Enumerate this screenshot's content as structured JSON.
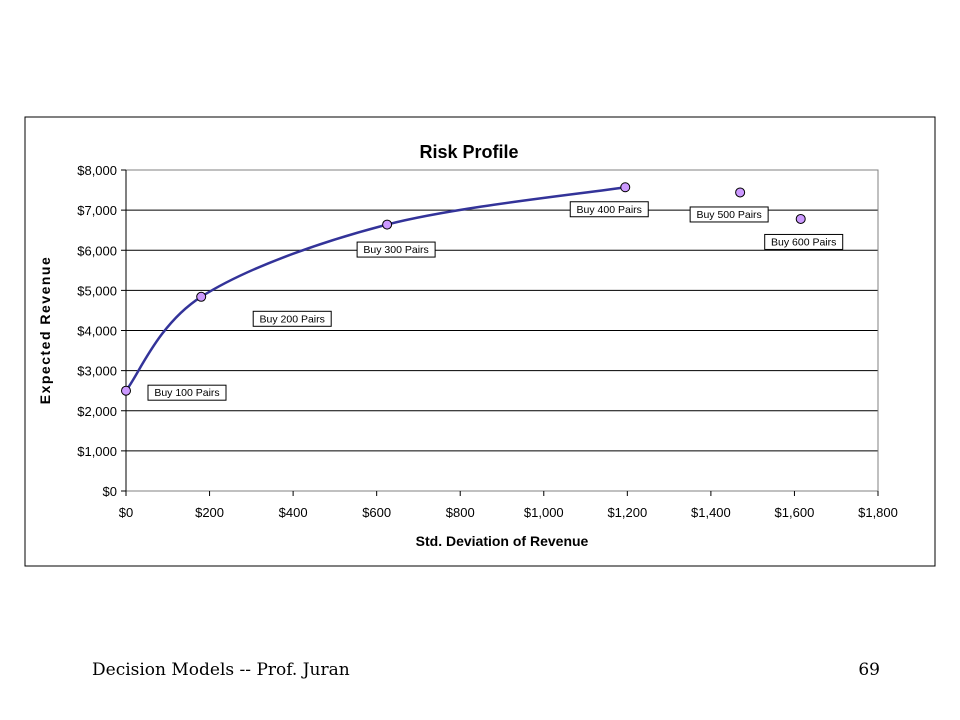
{
  "chart_data": {
    "type": "scatter",
    "title": "Risk Profile",
    "xlabel": "Std. Deviation of Revenue",
    "ylabel": "Expected Revenue",
    "xlim": [
      0,
      1800
    ],
    "ylim": [
      0,
      8000
    ],
    "x_ticks": [
      "$0",
      "$200",
      "$400",
      "$600",
      "$800",
      "$1,000",
      "$1,200",
      "$1,400",
      "$1,600",
      "$1,800"
    ],
    "y_ticks": [
      "$0",
      "$1,000",
      "$2,000",
      "$3,000",
      "$4,000",
      "$5,000",
      "$6,000",
      "$7,000",
      "$8,000"
    ],
    "grid": "horizontal",
    "points": [
      {
        "label": "Buy 100 Pairs",
        "x": 0,
        "y": 2500
      },
      {
        "label": "Buy 200 Pairs",
        "x": 180,
        "y": 4840
      },
      {
        "label": "Buy 300 Pairs",
        "x": 625,
        "y": 6640
      },
      {
        "label": "Buy 400 Pairs",
        "x": 1195,
        "y": 7570
      },
      {
        "label": "Buy 500 Pairs",
        "x": 1470,
        "y": 7440
      },
      {
        "label": "Buy 600 Pairs",
        "x": 1615,
        "y": 6780
      }
    ],
    "frontier_curve_through_points": 4,
    "colors": {
      "curve": "#333399",
      "marker": "#cc99ff",
      "grid": "#000000"
    }
  },
  "footer": {
    "left": "Decision Models --   Prof. Juran",
    "right": "69"
  }
}
